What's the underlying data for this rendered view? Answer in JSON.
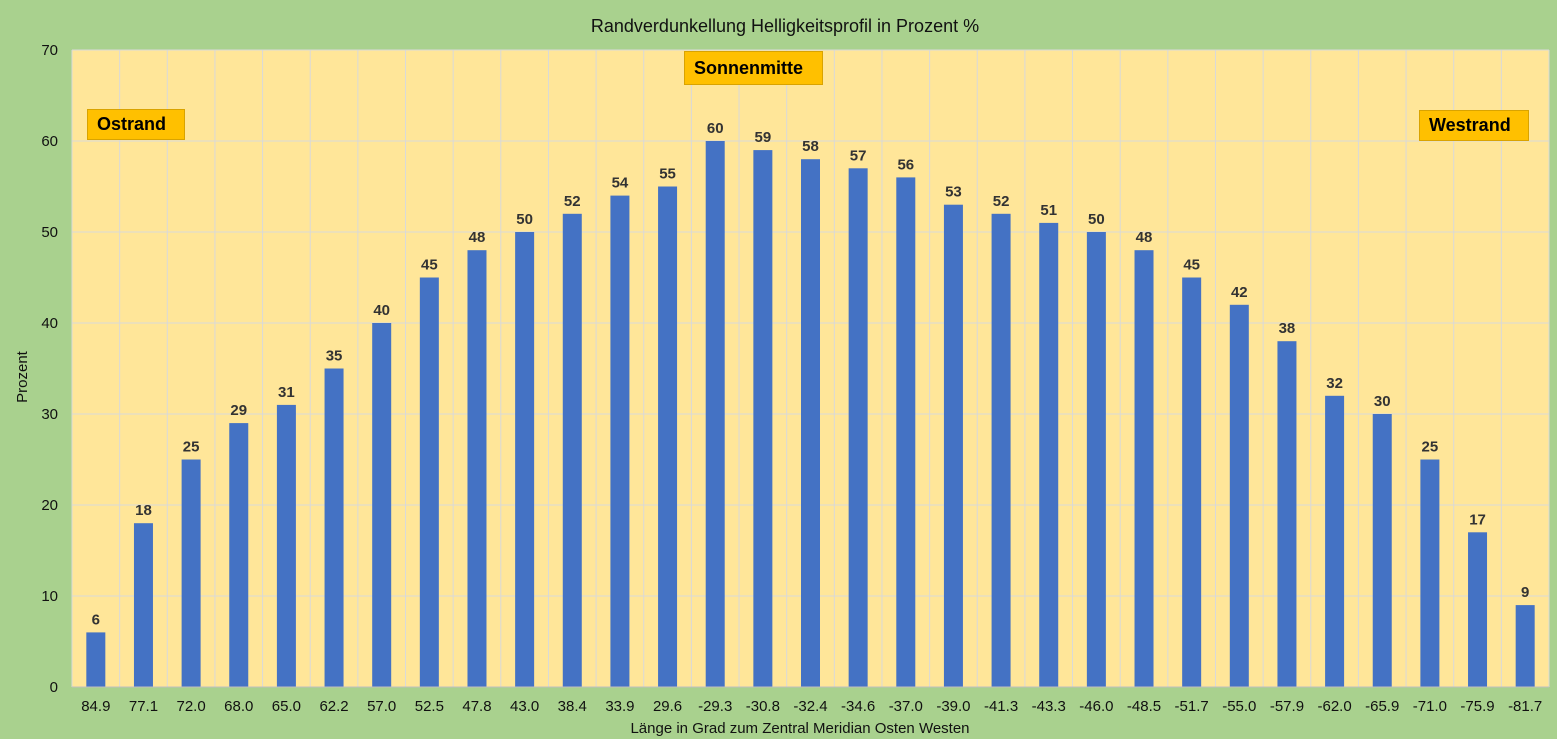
{
  "chart_data": {
    "type": "bar",
    "title": "Randverdunkellung Helligkeitsprofil in Prozent %",
    "xlabel": "Länge in Grad zum Zentral Meridian Osten Westen",
    "ylabel": "Prozent",
    "ylim": [
      0,
      70
    ],
    "yticks": [
      0,
      10,
      20,
      30,
      40,
      50,
      60,
      70
    ],
    "grid": true,
    "categories": [
      "84.9",
      "77.1",
      "72.0",
      "68.0",
      "65.0",
      "62.2",
      "57.0",
      "52.5",
      "47.8",
      "43.0",
      "38.4",
      "33.9",
      "29.6",
      "-29.3",
      "-30.8",
      "-32.4",
      "-34.6",
      "-37.0",
      "-39.0",
      "-41.3",
      "-43.3",
      "-46.0",
      "-48.5",
      "-51.7",
      "-55.0",
      "-57.9",
      "-62.0",
      "-65.9",
      "-71.0",
      "-75.9",
      "-81.7"
    ],
    "values": [
      6,
      18,
      25,
      29,
      31,
      35,
      40,
      45,
      48,
      50,
      52,
      54,
      55,
      60,
      59,
      58,
      57,
      56,
      53,
      52,
      51,
      50,
      48,
      45,
      42,
      38,
      32,
      30,
      25,
      17,
      9
    ],
    "annotations": [
      "Ostrand",
      "Sonnenmitte",
      "Westrand"
    ],
    "colors": {
      "bar": "#4472c4",
      "plot_background": "#ffe699",
      "page_background": "#a9d18e",
      "gridline": "#d9d9d9",
      "callout": "#ffc000"
    }
  }
}
